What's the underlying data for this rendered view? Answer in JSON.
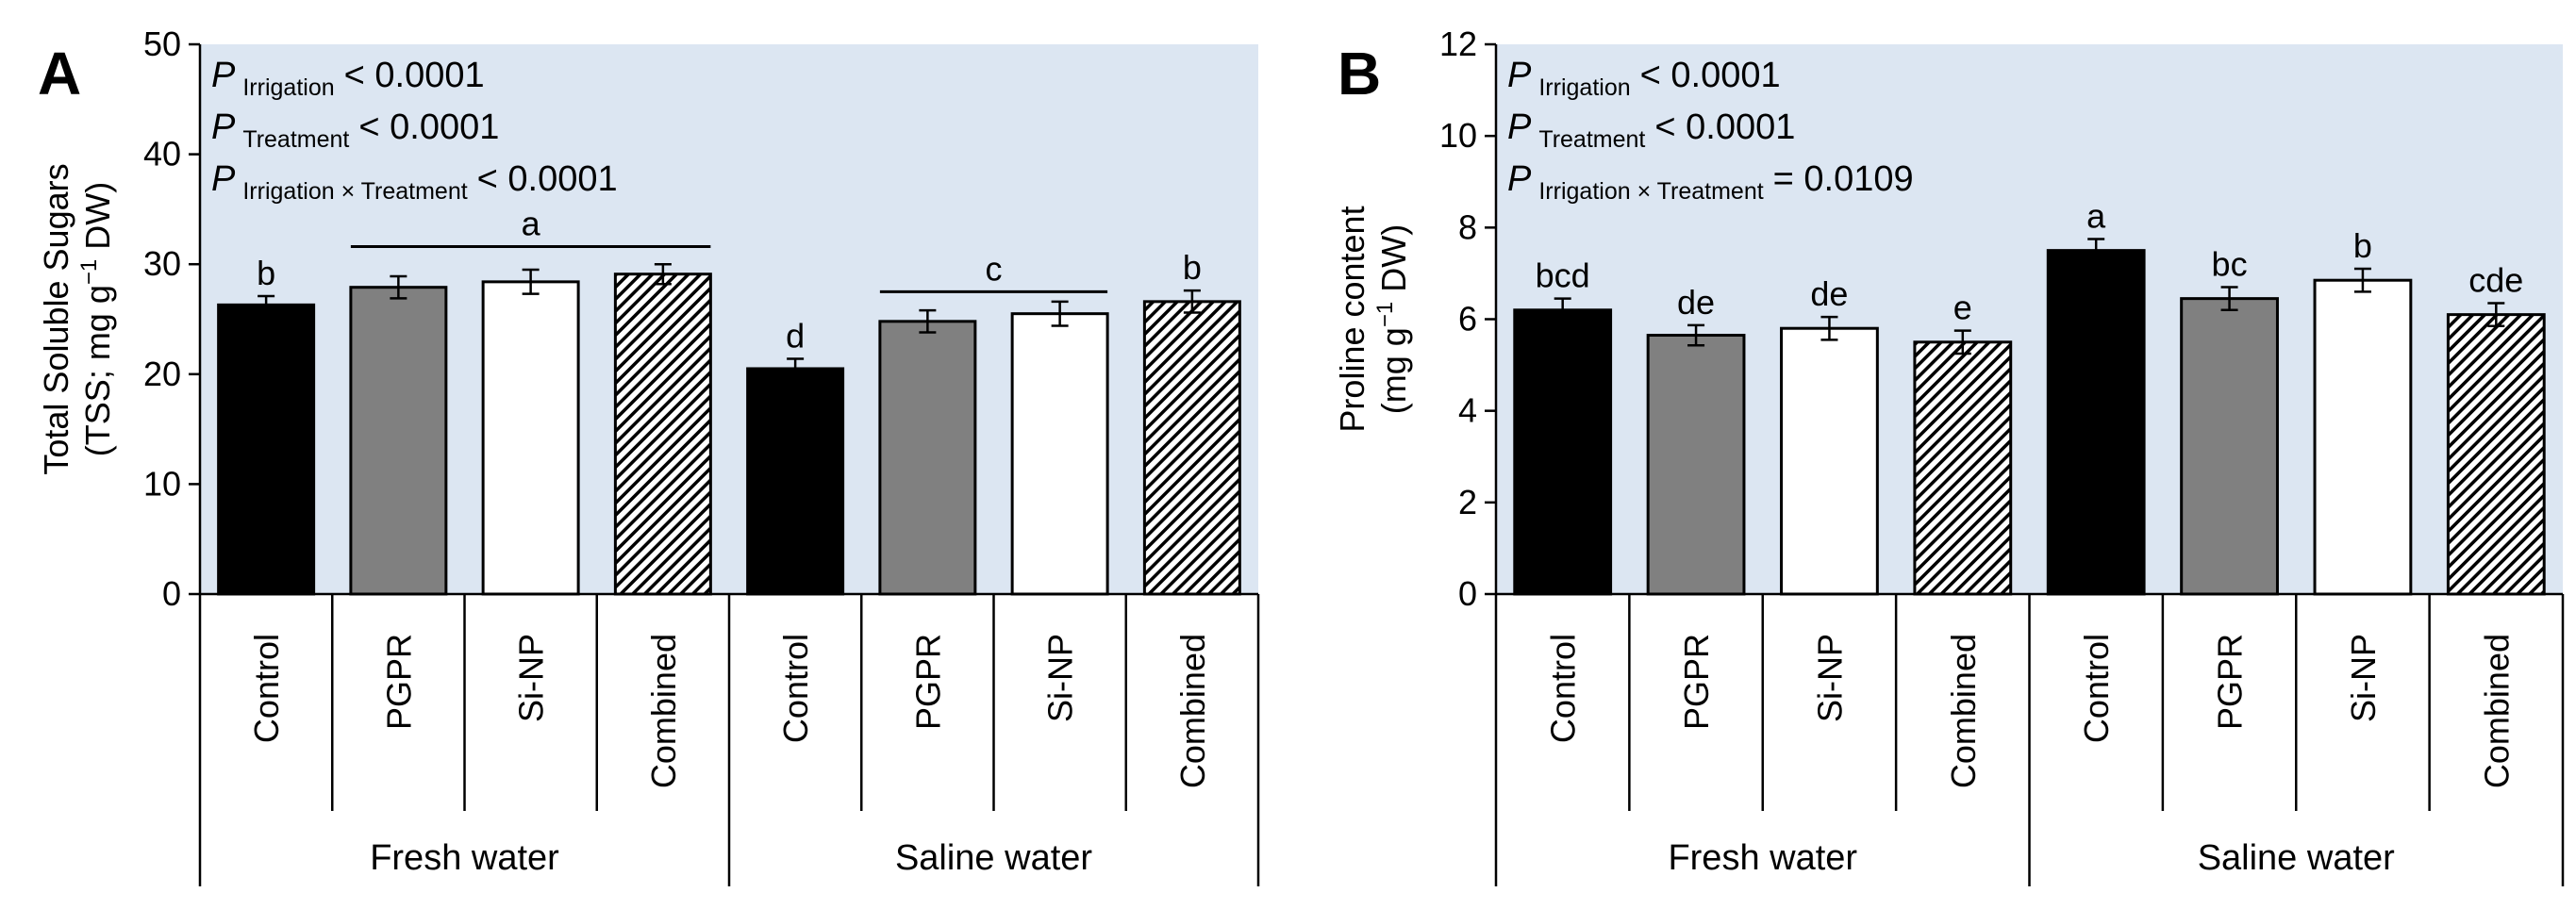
{
  "chart_data": [
    {
      "panel_label": "A",
      "type": "bar",
      "ylabel_line1": "Total Soluble Sugars",
      "ylabel_line2_pre": "(TSS; mg g",
      "ylabel_line2_sup": "−1",
      "ylabel_line2_post": " DW)",
      "ylim": [
        0,
        50
      ],
      "yticks": [
        "0",
        "10",
        "20",
        "30",
        "40",
        "50"
      ],
      "categories": [
        "Control",
        "PGPR",
        "Si-NP",
        "Combined",
        "Control",
        "PGPR",
        "Si-NP",
        "Combined"
      ],
      "groups": [
        {
          "name": "Fresh water",
          "start": 0,
          "count": 4
        },
        {
          "name": "Saline water",
          "start": 4,
          "count": 4
        }
      ],
      "treatment_fills": [
        "black",
        "gray",
        "white",
        "hatch"
      ],
      "values": [
        26.3,
        27.9,
        28.4,
        29.1,
        20.5,
        24.8,
        25.5,
        26.6
      ],
      "errors": [
        0.8,
        1.0,
        1.1,
        0.9,
        0.9,
        1.0,
        1.1,
        1.0
      ],
      "letters": [
        "b",
        "",
        "",
        "",
        "d",
        "",
        "",
        "b"
      ],
      "group_brackets": [
        {
          "from": 1,
          "to": 3,
          "letter": "a",
          "y": 31.6
        },
        {
          "from": 5,
          "to": 6,
          "letter": "c",
          "y": 27.5
        }
      ],
      "stats": [
        {
          "p": "P",
          "sub": "Irrigation",
          "value": "< 0.0001"
        },
        {
          "p": "P",
          "sub": "Treatment",
          "value": "< 0.0001"
        },
        {
          "p": "P",
          "sub": "Irrigation × Treatment",
          "value": "< 0.0001"
        }
      ]
    },
    {
      "panel_label": "B",
      "type": "bar",
      "ylabel_line1": "Proline content",
      "ylabel_line2_pre": "(mg g",
      "ylabel_line2_sup": "−1",
      "ylabel_line2_post": " DW)",
      "ylim": [
        0,
        12
      ],
      "yticks": [
        "0",
        "2",
        "4",
        "6",
        "8",
        "10",
        "12"
      ],
      "categories": [
        "Control",
        "PGPR",
        "Si-NP",
        "Combined",
        "Control",
        "PGPR",
        "Si-NP",
        "Combined"
      ],
      "groups": [
        {
          "name": "Fresh water",
          "start": 0,
          "count": 4
        },
        {
          "name": "Saline water",
          "start": 4,
          "count": 4
        }
      ],
      "treatment_fills": [
        "black",
        "gray",
        "white",
        "hatch"
      ],
      "values": [
        6.2,
        5.65,
        5.8,
        5.5,
        7.5,
        6.45,
        6.85,
        6.1
      ],
      "errors": [
        0.25,
        0.22,
        0.25,
        0.25,
        0.25,
        0.25,
        0.25,
        0.25
      ],
      "letters": [
        "bcd",
        "de",
        "de",
        "e",
        "a",
        "bc",
        "b",
        "cde"
      ],
      "group_brackets": [],
      "stats": [
        {
          "p": "P",
          "sub": "Irrigation",
          "value": "< 0.0001"
        },
        {
          "p": "P",
          "sub": "Treatment",
          "value": "< 0.0001"
        },
        {
          "p": "P",
          "sub": "Irrigation × Treatment",
          "value": "= 0.0109"
        }
      ]
    }
  ]
}
